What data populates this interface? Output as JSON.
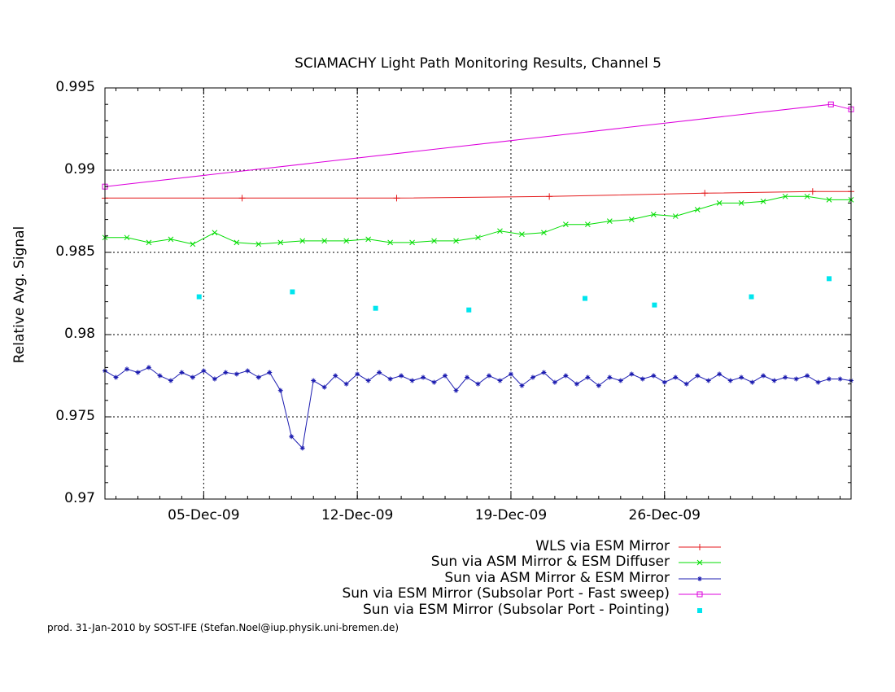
{
  "chart_data": {
    "type": "line",
    "title": "SCIAMACHY Light Path Monitoring Results, Channel 5",
    "ylabel": "Relative Avg. Signal",
    "xlabel": "",
    "xlim": [
      "2009-11-30T12:00",
      "2010-01-03T12:00"
    ],
    "ylim": [
      0.97,
      0.995
    ],
    "yticks": [
      "0.97",
      "0.975",
      "0.98",
      "0.985",
      "0.99",
      "0.995"
    ],
    "yticks_values": [
      0.97,
      0.975,
      0.98,
      0.985,
      0.99,
      0.995
    ],
    "xticks": [
      "05-Dec-09",
      "12-Dec-09",
      "19-Dec-09",
      "26-Dec-09"
    ],
    "xticks_values": [
      "2009-12-05",
      "2009-12-12",
      "2009-12-19",
      "2009-12-26"
    ],
    "grid": true,
    "legend_position": "below-right",
    "series": [
      {
        "name": "WLS via ESM Mirror",
        "color": "#e41a1c",
        "marker": "plus",
        "x": [
          "2009-11-30T12:00",
          "2009-12-06T18:00",
          "2009-12-13T19:00",
          "2009-12-20T18:00",
          "2009-12-27T20:00",
          "2010-01-01T18:00",
          "2010-01-03T12:00"
        ],
        "y": [
          0.9883,
          0.9883,
          0.9883,
          0.9884,
          0.9886,
          0.9887,
          0.9887
        ]
      },
      {
        "name": "Sun via ASM Mirror & ESM Diffuser",
        "color": "#00dd00",
        "marker": "x",
        "x": [
          "2009-11-30T12:00",
          "2009-12-01T12:00",
          "2009-12-02T12:00",
          "2009-12-03T12:00",
          "2009-12-04T12:00",
          "2009-12-05T12:00",
          "2009-12-06T12:00",
          "2009-12-07T12:00",
          "2009-12-08T12:00",
          "2009-12-09T12:00",
          "2009-12-10T12:00",
          "2009-12-11T12:00",
          "2009-12-12T12:00",
          "2009-12-13T12:00",
          "2009-12-14T12:00",
          "2009-12-15T12:00",
          "2009-12-16T12:00",
          "2009-12-17T12:00",
          "2009-12-18T12:00",
          "2009-12-19T12:00",
          "2009-12-20T12:00",
          "2009-12-21T12:00",
          "2009-12-22T12:00",
          "2009-12-23T12:00",
          "2009-12-24T12:00",
          "2009-12-25T12:00",
          "2009-12-26T12:00",
          "2009-12-27T12:00",
          "2009-12-28T12:00",
          "2009-12-29T12:00",
          "2009-12-30T12:00",
          "2009-12-31T12:00",
          "2010-01-01T12:00",
          "2010-01-02T12:00",
          "2010-01-03T12:00"
        ],
        "y": [
          0.9859,
          0.9859,
          0.9856,
          0.9858,
          0.9855,
          0.9862,
          0.9856,
          0.9855,
          0.9856,
          0.9857,
          0.9857,
          0.9857,
          0.9858,
          0.9856,
          0.9856,
          0.9857,
          0.9857,
          0.9859,
          0.9863,
          0.9861,
          0.9862,
          0.9867,
          0.9867,
          0.9869,
          0.987,
          0.9873,
          0.9872,
          0.9876,
          0.988,
          0.988,
          0.9881,
          0.9884,
          0.9884,
          0.9882,
          0.9882
        ]
      },
      {
        "name": "Sun via ASM Mirror & ESM Mirror",
        "color": "#1c1cb0",
        "marker": "star",
        "x": [
          "2009-11-30T12:00",
          "2009-12-01T00:00",
          "2009-12-01T12:00",
          "2009-12-02T00:00",
          "2009-12-02T12:00",
          "2009-12-03T00:00",
          "2009-12-03T12:00",
          "2009-12-04T00:00",
          "2009-12-04T12:00",
          "2009-12-05T00:00",
          "2009-12-05T12:00",
          "2009-12-06T00:00",
          "2009-12-06T12:00",
          "2009-12-07T00:00",
          "2009-12-07T12:00",
          "2009-12-08T00:00",
          "2009-12-08T12:00",
          "2009-12-09T00:00",
          "2009-12-09T12:00",
          "2009-12-10T00:00",
          "2009-12-10T12:00",
          "2009-12-11T00:00",
          "2009-12-11T12:00",
          "2009-12-12T00:00",
          "2009-12-12T12:00",
          "2009-12-13T00:00",
          "2009-12-13T12:00",
          "2009-12-14T00:00",
          "2009-12-14T12:00",
          "2009-12-15T00:00",
          "2009-12-15T12:00",
          "2009-12-16T00:00",
          "2009-12-16T12:00",
          "2009-12-17T00:00",
          "2009-12-17T12:00",
          "2009-12-18T00:00",
          "2009-12-18T12:00",
          "2009-12-19T00:00",
          "2009-12-19T12:00",
          "2009-12-20T00:00",
          "2009-12-20T12:00",
          "2009-12-21T00:00",
          "2009-12-21T12:00",
          "2009-12-22T00:00",
          "2009-12-22T12:00",
          "2009-12-23T00:00",
          "2009-12-23T12:00",
          "2009-12-24T00:00",
          "2009-12-24T12:00",
          "2009-12-25T00:00",
          "2009-12-25T12:00",
          "2009-12-26T00:00",
          "2009-12-26T12:00",
          "2009-12-27T00:00",
          "2009-12-27T12:00",
          "2009-12-28T00:00",
          "2009-12-28T12:00",
          "2009-12-29T00:00",
          "2009-12-29T12:00",
          "2009-12-30T00:00",
          "2009-12-30T12:00",
          "2009-12-31T00:00",
          "2009-12-31T12:00",
          "2010-01-01T00:00",
          "2010-01-01T12:00",
          "2010-01-02T00:00",
          "2010-01-02T12:00",
          "2010-01-03T00:00",
          "2010-01-03T12:00"
        ],
        "y": [
          0.9778,
          0.9774,
          0.9779,
          0.9777,
          0.978,
          0.9775,
          0.9772,
          0.9777,
          0.9774,
          0.9778,
          0.9773,
          0.9777,
          0.9776,
          0.9778,
          0.9774,
          0.9777,
          0.9766,
          0.9738,
          0.9731,
          0.9772,
          0.9768,
          0.9775,
          0.977,
          0.9776,
          0.9772,
          0.9777,
          0.9773,
          0.9775,
          0.9772,
          0.9774,
          0.9771,
          0.9775,
          0.9766,
          0.9774,
          0.977,
          0.9775,
          0.9772,
          0.9776,
          0.9769,
          0.9774,
          0.9777,
          0.9771,
          0.9775,
          0.977,
          0.9774,
          0.9769,
          0.9774,
          0.9772,
          0.9776,
          0.9773,
          0.9775,
          0.9771,
          0.9774,
          0.977,
          0.9775,
          0.9772,
          0.9776,
          0.9772,
          0.9774,
          0.9771,
          0.9775,
          0.9772,
          0.9774,
          0.9773,
          0.9775,
          0.9771,
          0.9773,
          0.9773,
          0.9772
        ]
      },
      {
        "name": "Sun via ESM Mirror (Subsolar Port - Fast sweep)",
        "color": "#dd00dd",
        "marker": "square",
        "x": [
          "2009-11-30T12:00",
          "2010-01-02T14:00",
          "2010-01-03T12:00"
        ],
        "y": [
          0.989,
          0.994,
          0.9937
        ]
      },
      {
        "name": "Sun via ESM Mirror (Subsolar Port - Pointing)",
        "color": "#00e5ee",
        "marker": "filled-square",
        "points_only": true,
        "x": [
          "2009-12-04T19:00",
          "2009-12-09T01:00",
          "2009-12-12T20:00",
          "2009-12-17T02:00",
          "2009-12-22T09:00",
          "2009-12-25T13:00",
          "2009-12-29T23:00",
          "2010-01-02T12:00"
        ],
        "y": [
          0.9823,
          0.9826,
          0.9816,
          0.9815,
          0.9822,
          0.9818,
          0.9823,
          0.9834
        ]
      }
    ]
  },
  "footer": "prod. 31-Jan-2010 by SOST-IFE (Stefan.Noel@iup.physik.uni-bremen.de)"
}
